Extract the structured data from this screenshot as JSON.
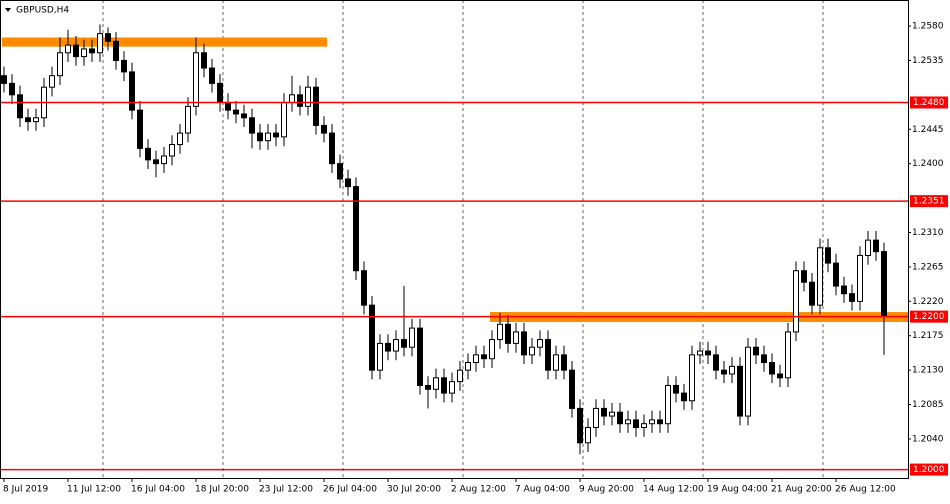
{
  "chart_data": {
    "type": "candlestick",
    "title": "GBPUSD,H4",
    "categories": [
      "8 Jul 2019",
      null,
      null,
      null,
      null,
      null,
      null,
      null,
      "11 Jul 12:00",
      null,
      null,
      null,
      null,
      null,
      null,
      null,
      "16 Jul 04:00",
      null,
      null,
      null,
      null,
      null,
      null,
      null,
      "18 Jul 20:00",
      null,
      null,
      null,
      null,
      null,
      null,
      null,
      "23 Jul 12:00",
      null,
      null,
      null,
      null,
      null,
      null,
      null,
      "26 Jul 04:00",
      null,
      null,
      null,
      null,
      null,
      null,
      null,
      "30 Jul 20:00",
      null,
      null,
      null,
      null,
      null,
      null,
      null,
      "2 Aug 12:00",
      null,
      null,
      null,
      null,
      null,
      null,
      null,
      "7 Aug 04:00",
      null,
      null,
      null,
      null,
      null,
      null,
      null,
      "9 Aug 20:00",
      null,
      null,
      null,
      null,
      null,
      null,
      null,
      "14 Aug 12:00",
      null,
      null,
      null,
      null,
      null,
      null,
      null,
      "19 Aug 04:00",
      null,
      null,
      null,
      null,
      null,
      null,
      null,
      "21 Aug 20:00",
      null,
      null,
      null,
      null,
      null,
      null,
      null,
      "26 Aug 12:00",
      null,
      null,
      null,
      null,
      null,
      null
    ],
    "open": [
      1.2515,
      1.2505,
      1.249,
      1.246,
      1.2455,
      1.246,
      1.25,
      1.2515,
      1.2545,
      1.2555,
      1.254,
      1.255,
      1.2545,
      1.257,
      1.256,
      1.2535,
      1.252,
      1.247,
      1.242,
      1.2405,
      1.24,
      1.241,
      1.2425,
      1.244,
      1.2475,
      1.2545,
      1.2525,
      1.2505,
      1.248,
      1.247,
      1.2465,
      1.246,
      1.244,
      1.243,
      1.244,
      1.2435,
      1.248,
      1.249,
      1.2475,
      1.25,
      1.245,
      1.244,
      1.24,
      1.238,
      1.237,
      1.226,
      1.2215,
      1.213,
      1.2165,
      1.2155,
      1.217,
      1.216,
      1.2185,
      1.211,
      1.2105,
      1.212,
      1.21,
      1.2115,
      1.213,
      1.214,
      1.215,
      1.2145,
      1.217,
      1.219,
      1.2165,
      1.218,
      1.215,
      1.216,
      1.217,
      1.213,
      1.215,
      1.213,
      1.208,
      1.2035,
      1.2055,
      1.208,
      1.207,
      1.2075,
      1.206,
      1.2065,
      1.2055,
      1.206,
      1.2065,
      1.206,
      1.211,
      1.21,
      1.209,
      1.215,
      1.2155,
      1.215,
      1.213,
      1.2125,
      1.2135,
      1.207,
      1.216,
      1.215,
      1.214,
      1.2125,
      1.212,
      1.218,
      1.226,
      1.2245,
      1.2215,
      1.229,
      1.227,
      1.224,
      1.223,
      1.222,
      1.228,
      1.23,
      1.2285
    ],
    "high": [
      1.2527,
      1.2517,
      1.2502,
      1.2472,
      1.2472,
      1.2512,
      1.2527,
      1.2565,
      1.2575,
      1.2567,
      1.2562,
      1.2562,
      1.2582,
      1.2578,
      1.2572,
      1.2547,
      1.2532,
      1.2482,
      1.2432,
      1.2417,
      1.2422,
      1.2437,
      1.2452,
      1.2487,
      1.2565,
      1.2557,
      1.2537,
      1.2517,
      1.2492,
      1.2482,
      1.2477,
      1.2472,
      1.2452,
      1.2452,
      1.2452,
      1.2492,
      1.2515,
      1.2502,
      1.2515,
      1.2512,
      1.2462,
      1.2452,
      1.2412,
      1.2392,
      1.2382,
      1.2272,
      1.2227,
      1.2177,
      1.2177,
      1.2182,
      1.224,
      1.2197,
      1.2197,
      1.2122,
      1.2132,
      1.2132,
      1.2127,
      1.2142,
      1.2152,
      1.2162,
      1.2162,
      1.2182,
      1.2205,
      1.2202,
      1.2192,
      1.2192,
      1.2172,
      1.2182,
      1.2182,
      1.2162,
      1.2162,
      1.2142,
      1.2092,
      1.2067,
      1.2092,
      1.2092,
      1.2087,
      1.2087,
      1.2077,
      1.2077,
      1.2072,
      1.2077,
      1.2077,
      1.2122,
      1.2122,
      1.2112,
      1.2162,
      1.2167,
      1.2167,
      1.2162,
      1.2142,
      1.2147,
      1.2147,
      1.2172,
      1.2172,
      1.2162,
      1.2152,
      1.2137,
      1.2192,
      1.2272,
      1.2272,
      1.2257,
      1.2302,
      1.2302,
      1.2282,
      1.2252,
      1.2242,
      1.2292,
      1.2312,
      1.2312,
      1.2297
    ],
    "low": [
      1.2493,
      1.2478,
      1.2448,
      1.2443,
      1.2443,
      1.2448,
      1.2488,
      1.2503,
      1.2533,
      1.2528,
      1.2528,
      1.2533,
      1.2533,
      1.2548,
      1.2523,
      1.2508,
      1.2458,
      1.2408,
      1.2393,
      1.2382,
      1.2388,
      1.2398,
      1.2413,
      1.2428,
      1.2463,
      1.2513,
      1.2493,
      1.2468,
      1.2458,
      1.2453,
      1.2448,
      1.242,
      1.2418,
      1.2418,
      1.2423,
      1.2423,
      1.2468,
      1.2463,
      1.2463,
      1.2438,
      1.2428,
      1.2388,
      1.2368,
      1.2358,
      1.2248,
      1.2203,
      1.2118,
      1.2118,
      1.2143,
      1.2143,
      1.2148,
      1.2148,
      1.2098,
      1.208,
      1.2093,
      1.2088,
      1.2088,
      1.2103,
      1.2118,
      1.2128,
      1.2133,
      1.2133,
      1.2158,
      1.2153,
      1.2153,
      1.2138,
      1.2138,
      1.2148,
      1.2118,
      1.2118,
      1.2118,
      1.2068,
      1.202,
      1.2023,
      1.2043,
      1.2058,
      1.2058,
      1.2048,
      1.2048,
      1.2043,
      1.2043,
      1.2048,
      1.2048,
      1.2048,
      1.2088,
      1.2078,
      1.2078,
      1.2138,
      1.2138,
      1.2118,
      1.2113,
      1.2113,
      1.2058,
      1.2058,
      1.2138,
      1.2128,
      1.2113,
      1.2108,
      1.2108,
      1.2168,
      1.2233,
      1.2203,
      1.2203,
      1.2258,
      1.2228,
      1.2218,
      1.2208,
      1.2208,
      1.2268,
      1.2273,
      1.215
    ],
    "close": [
      1.2505,
      1.249,
      1.246,
      1.2455,
      1.246,
      1.25,
      1.2515,
      1.2545,
      1.2555,
      1.254,
      1.255,
      1.2545,
      1.257,
      1.256,
      1.2535,
      1.252,
      1.247,
      1.242,
      1.2405,
      1.24,
      1.241,
      1.2425,
      1.244,
      1.2475,
      1.2545,
      1.2525,
      1.2505,
      1.248,
      1.247,
      1.2465,
      1.246,
      1.244,
      1.243,
      1.244,
      1.2435,
      1.248,
      1.249,
      1.2475,
      1.25,
      1.245,
      1.244,
      1.24,
      1.238,
      1.237,
      1.226,
      1.2215,
      1.213,
      1.2165,
      1.2155,
      1.217,
      1.216,
      1.2185,
      1.211,
      1.2105,
      1.212,
      1.21,
      1.2115,
      1.213,
      1.214,
      1.215,
      1.2145,
      1.217,
      1.219,
      1.2165,
      1.218,
      1.215,
      1.216,
      1.217,
      1.213,
      1.215,
      1.213,
      1.208,
      1.2035,
      1.2055,
      1.208,
      1.207,
      1.2075,
      1.206,
      1.2065,
      1.2055,
      1.206,
      1.2065,
      1.206,
      1.211,
      1.21,
      1.209,
      1.215,
      1.2155,
      1.215,
      1.213,
      1.2125,
      1.2135,
      1.207,
      1.216,
      1.215,
      1.214,
      1.2125,
      1.212,
      1.218,
      1.226,
      1.2245,
      1.2215,
      1.229,
      1.227,
      1.224,
      1.223,
      1.222,
      1.228,
      1.23,
      1.2285,
      1.22
    ],
    "ylim": [
      1.1989,
      1.2614
    ],
    "yticks": [
      {
        "value": 1.204,
        "label": "1.2040"
      },
      1.2085,
      {
        "value": 1.213,
        "label": "1.2130"
      },
      1.2175,
      {
        "value": 1.222,
        "label": "1.2220"
      },
      1.2265,
      {
        "value": 1.231,
        "label": "1.2310"
      },
      {
        "value": 1.24,
        "label": "1.2400"
      },
      1.2445,
      1.2535,
      {
        "value": 1.258,
        "label": "1.2580"
      }
    ],
    "levels": [
      {
        "value": 1.248,
        "label": "1.2480"
      },
      {
        "value": 1.2351,
        "label": "1.2351"
      },
      {
        "value": 1.22,
        "label": "1.2200"
      },
      {
        "value": 1.2,
        "label": "1.2000"
      }
    ],
    "level_color": "#ff0000",
    "zones": [
      {
        "from": 1.2553,
        "to": 1.2565
      },
      {
        "from": 1.2193,
        "to": 1.2206
      }
    ],
    "zone_color": "#ff8c00"
  }
}
